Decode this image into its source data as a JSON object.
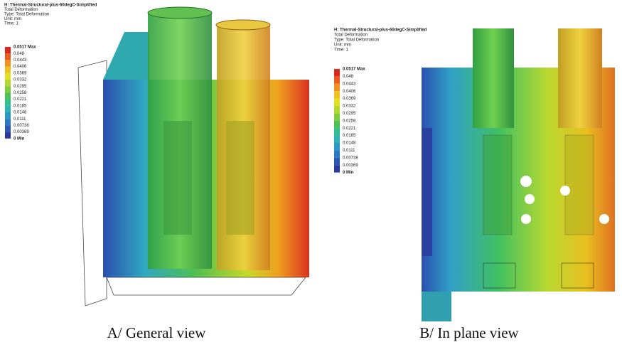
{
  "panels": [
    {
      "header": {
        "title": "H: Thermal-Structural-plus-60degC-Simplified",
        "lines": [
          "Total Deformation",
          "Type: Total Deformation",
          "Unit: mm",
          "Time: 1"
        ]
      },
      "legend": [
        "0.0517 Max",
        "0.048",
        "0.0443",
        "0.0406",
        "0.0369",
        "0.0332",
        "0.0295",
        "0.0258",
        "0.0221",
        "0.0185",
        "0.0148",
        "0.0111",
        "0.00738",
        "0.00369",
        "0 Min"
      ],
      "caption": "A/ General view"
    },
    {
      "header": {
        "title": "H: Thermal-Structural-plus-60degC-Simplified",
        "lines": [
          "Total Deformation",
          "Type: Total Deformation",
          "Unit: mm",
          "Time: 1"
        ]
      },
      "legend": [
        "0.0517 Max",
        "0.048",
        "0.0443",
        "0.0406",
        "0.0369",
        "0.0332",
        "0.0295",
        "0.0258",
        "0.0221",
        "0.0185",
        "0.0148",
        "0.0111",
        "0.00738",
        "0.00369",
        "0 Min"
      ],
      "caption": "B/ In plane view"
    }
  ]
}
